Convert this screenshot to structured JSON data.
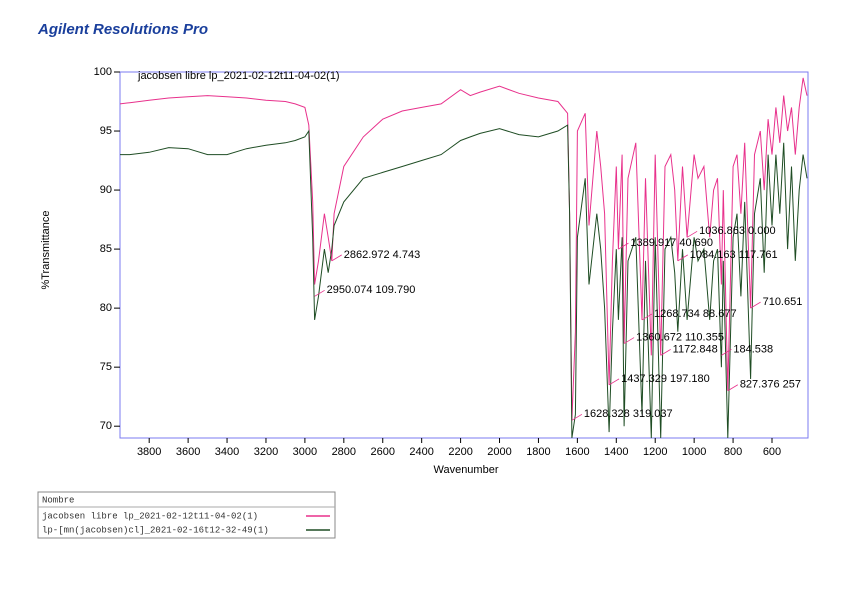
{
  "chart_data": {
    "type": "line",
    "title": "Agilent Resolutions Pro",
    "xlabel": "Wavenumber",
    "ylabel": "%Transmittance",
    "legend_title": "Nombre",
    "xlim": [
      3950,
      415
    ],
    "ylim": [
      69,
      100
    ],
    "xticks": [
      3800,
      3600,
      3400,
      3200,
      3000,
      2800,
      2600,
      2400,
      2200,
      2000,
      1800,
      1600,
      1400,
      1200,
      1000,
      800,
      600
    ],
    "yticks": [
      70,
      75,
      80,
      85,
      90,
      95,
      100
    ],
    "x": [
      3950,
      3900,
      3800,
      3700,
      3600,
      3500,
      3400,
      3300,
      3200,
      3100,
      3050,
      3000,
      2980,
      2960,
      2950,
      2930,
      2900,
      2880,
      2862,
      2850,
      2800,
      2700,
      2600,
      2500,
      2400,
      2300,
      2200,
      2150,
      2100,
      2000,
      1900,
      1800,
      1700,
      1650,
      1640,
      1628,
      1610,
      1600,
      1560,
      1540,
      1500,
      1480,
      1460,
      1437,
      1420,
      1400,
      1389,
      1370,
      1360,
      1340,
      1300,
      1268,
      1250,
      1220,
      1200,
      1172,
      1150,
      1120,
      1100,
      1084,
      1060,
      1036,
      1000,
      980,
      950,
      920,
      900,
      880,
      860,
      850,
      827,
      800,
      780,
      760,
      740,
      710,
      690,
      660,
      640,
      620,
      600,
      580,
      560,
      540,
      520,
      500,
      480,
      460,
      440,
      420
    ],
    "series": [
      {
        "name": "jacobsen libre lp_2021-02-12t11-04-02(1)",
        "color": "#e8318c",
        "values": [
          97.3,
          97.4,
          97.6,
          97.8,
          97.9,
          98.0,
          97.9,
          97.8,
          97.6,
          97.5,
          97.3,
          97.0,
          95.5,
          89,
          82,
          84,
          88,
          86,
          84,
          88,
          92,
          94.5,
          96,
          96.7,
          97,
          97.3,
          98.5,
          98,
          98.3,
          98.8,
          98.2,
          97.8,
          97.5,
          96.5,
          88,
          70.5,
          78,
          95,
          96.5,
          87,
          95,
          92,
          88,
          73.5,
          84,
          92,
          85,
          93,
          77,
          91,
          94,
          79,
          91,
          76,
          93,
          76,
          92,
          93,
          90,
          84,
          92,
          86,
          93,
          91,
          92,
          86,
          90,
          91,
          82,
          90,
          73,
          92,
          93,
          88,
          94,
          80,
          93,
          95,
          90,
          96,
          93,
          97,
          94,
          98,
          95,
          97,
          93,
          97,
          99.5,
          98
        ]
      },
      {
        "name": "lp-[mn(jacobsen)cl]_2021-02-16t12-32-49(1)",
        "color": "#1f4d24",
        "values": [
          93,
          93,
          93.2,
          93.6,
          93.5,
          93,
          93,
          93.5,
          93.8,
          94,
          94.2,
          94.5,
          95,
          86,
          79,
          81,
          85,
          83,
          85,
          87,
          89,
          91,
          91.5,
          92,
          92.5,
          93,
          94.2,
          94.5,
          94.8,
          95.2,
          94.7,
          94.5,
          95,
          95.5,
          88,
          69,
          71,
          86,
          91,
          82,
          88,
          85,
          80,
          69.5,
          78,
          85,
          79,
          86,
          70,
          84,
          86,
          71,
          84,
          69,
          86,
          69,
          85,
          86,
          83,
          78,
          85,
          79,
          86,
          84,
          85,
          79,
          84,
          85,
          75,
          84,
          69,
          86,
          88,
          81,
          89,
          74,
          88,
          91,
          83,
          93,
          87,
          93,
          88,
          94,
          85,
          92,
          84,
          90,
          93,
          91
        ]
      }
    ],
    "annotations": [
      {
        "text": "2862.972  4.743",
        "x": 2862,
        "y": 84
      },
      {
        "text": "2950.074  109.790",
        "x": 2950,
        "y": 81
      },
      {
        "text": "1628.328  319.037",
        "x": 1628,
        "y": 70.5
      },
      {
        "text": "1437.329  197.180",
        "x": 1437,
        "y": 73.5
      },
      {
        "text": "1389.917  40.690",
        "x": 1389,
        "y": 85
      },
      {
        "text": "1360.672  110.355",
        "x": 1360,
        "y": 77
      },
      {
        "text": "1268.734  88.677",
        "x": 1268,
        "y": 79
      },
      {
        "text": "1172.848",
        "x": 1172,
        "y": 76
      },
      {
        "text": "1084.163  117.761",
        "x": 1084,
        "y": 84
      },
      {
        "text": "1036.863  0.000",
        "x": 1036,
        "y": 86
      },
      {
        "text": "184.538",
        "x": 860,
        "y": 76
      },
      {
        "text": "827.376  257",
        "x": 827,
        "y": 73
      },
      {
        "text": "710.651",
        "x": 710,
        "y": 80
      }
    ]
  }
}
